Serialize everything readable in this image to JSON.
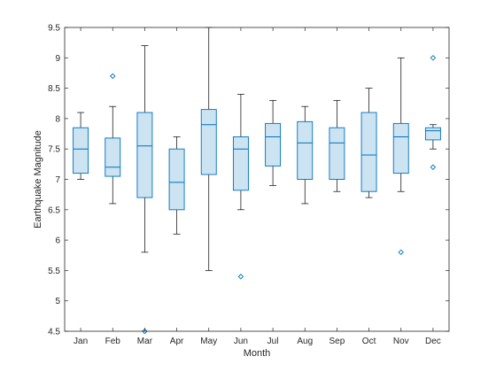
{
  "chart_data": {
    "type": "box",
    "title": "",
    "xlabel": "Month",
    "ylabel": "Earthquake Magnitude",
    "ylim": [
      4.5,
      9.5
    ],
    "yticks": [
      4.5,
      5,
      5.5,
      6,
      6.5,
      7,
      7.5,
      8,
      8.5,
      9,
      9.5
    ],
    "ytick_labels": [
      "4.5",
      "5",
      "5.5",
      "6",
      "6.5",
      "7",
      "7.5",
      "8",
      "8.5",
      "9",
      "9.5"
    ],
    "grid": false,
    "colors": {
      "box_edge": "#0072BD",
      "box_fill": "#CCE3F2",
      "axis": "#262626",
      "outlier": "#0072BD"
    },
    "categories": [
      "Jan",
      "Feb",
      "Mar",
      "Apr",
      "May",
      "Jun",
      "Jul",
      "Aug",
      "Sep",
      "Oct",
      "Nov",
      "Dec"
    ],
    "boxes": [
      {
        "min": 7.0,
        "q1": 7.1,
        "median": 7.5,
        "q3": 7.85,
        "max": 8.1,
        "outliers": []
      },
      {
        "min": 6.6,
        "q1": 7.05,
        "median": 7.2,
        "q3": 7.68,
        "max": 8.2,
        "outliers": [
          8.7
        ]
      },
      {
        "min": 5.8,
        "q1": 6.7,
        "median": 7.55,
        "q3": 8.1,
        "max": 9.2,
        "outliers": [
          4.5
        ]
      },
      {
        "min": 6.1,
        "q1": 6.5,
        "median": 6.95,
        "q3": 7.5,
        "max": 7.7,
        "outliers": []
      },
      {
        "min": 5.5,
        "q1": 7.08,
        "median": 7.9,
        "q3": 8.15,
        "max": 9.5,
        "outliers": []
      },
      {
        "min": 6.5,
        "q1": 6.82,
        "median": 7.5,
        "q3": 7.7,
        "max": 8.4,
        "outliers": [
          5.4
        ]
      },
      {
        "min": 6.9,
        "q1": 7.22,
        "median": 7.7,
        "q3": 7.92,
        "max": 8.3,
        "outliers": []
      },
      {
        "min": 6.6,
        "q1": 7.0,
        "median": 7.6,
        "q3": 7.95,
        "max": 8.2,
        "outliers": []
      },
      {
        "min": 6.8,
        "q1": 7.0,
        "median": 7.6,
        "q3": 7.85,
        "max": 8.3,
        "outliers": []
      },
      {
        "min": 6.7,
        "q1": 6.8,
        "median": 7.4,
        "q3": 8.1,
        "max": 8.5,
        "outliers": []
      },
      {
        "min": 6.8,
        "q1": 7.1,
        "median": 7.7,
        "q3": 7.92,
        "max": 9.0,
        "outliers": [
          5.8
        ]
      },
      {
        "min": 7.5,
        "q1": 7.65,
        "median": 7.8,
        "q3": 7.85,
        "max": 7.9,
        "outliers": [
          9.0,
          7.2
        ]
      }
    ]
  }
}
